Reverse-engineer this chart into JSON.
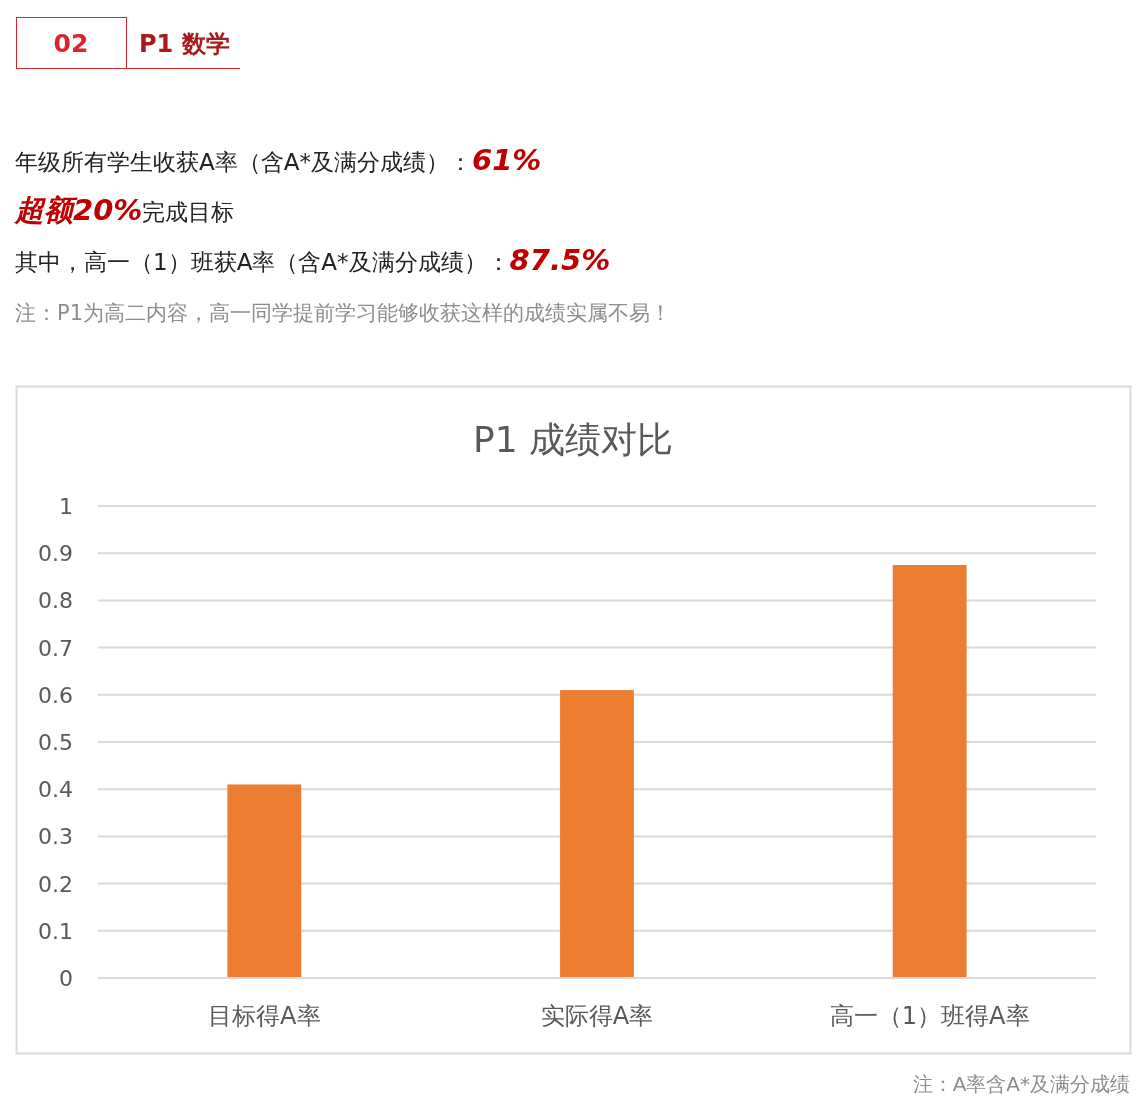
{
  "chart_data": {
    "type": "bar",
    "title": "P1 成绩对比",
    "categories": [
      "目标得A率",
      "实际得A率",
      "高一（1）班得A率"
    ],
    "values": [
      0.41,
      0.61,
      0.875
    ],
    "color": "#ed7d31",
    "ylim": [
      0,
      1
    ],
    "yticks": [
      0,
      0.1,
      0.2,
      0.3,
      0.4,
      0.5,
      0.6,
      0.7,
      0.8,
      0.9,
      1
    ],
    "grid": "y",
    "annotations": [
      "02",
      "P1 数学",
      "年级所有学生收获A率（含A*及满分成绩）：**61%**",
      "**超额20%**完成目标",
      "其中，高一（1）班获A率（含A*及满分成绩）：**87.5%**",
      "注：P1为高二内容，高一同学提前学习能够收获这样的成绩实属不易！",
      "注：A率含A*及满分成绩"
    ]
  }
}
